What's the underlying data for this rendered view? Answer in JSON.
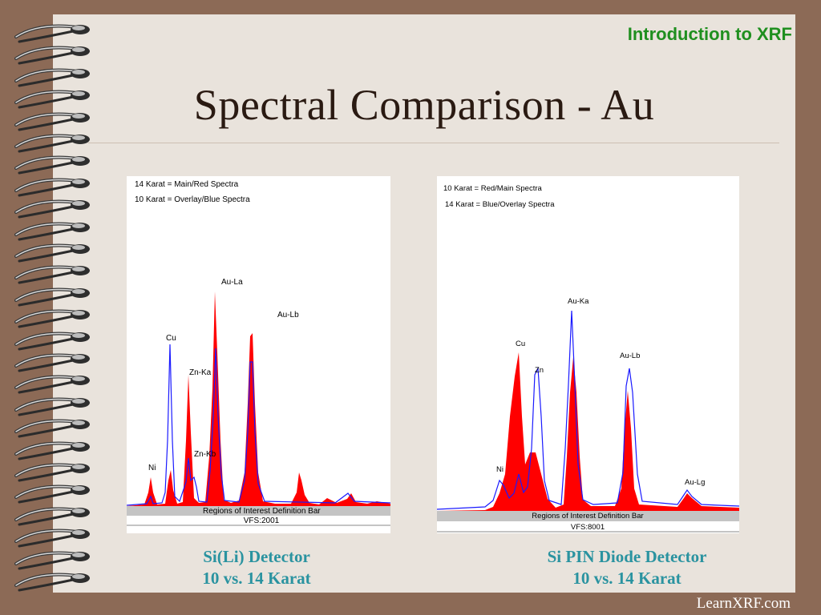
{
  "header": {
    "tag": "Introduction to XRF",
    "title": "Spectral Comparison - Au"
  },
  "footer": {
    "site": "LearnXRF.com"
  },
  "left_panel": {
    "legend_1": "14 Karat = Main/Red Spectra",
    "legend_2": "10 Karat = Overlay/Blue Spectra",
    "labels": {
      "ni": "Ni",
      "cu": "Cu",
      "zn_ka": "Zn-Ka",
      "zn_kb": "Zn-Kb",
      "au_la": "Au-La",
      "au_lb": "Au-Lb"
    },
    "roi_bar": "Regions of Interest Definition Bar",
    "vfs": "VFS:2001",
    "caption_1": "Si(Li) Detector",
    "caption_2": "10 vs. 14 Karat"
  },
  "right_panel": {
    "legend_1": "10 Karat = Red/Main Spectra",
    "legend_2": "14 Karat = Blue/Overlay Spectra",
    "labels": {
      "ni": "Ni",
      "cu": "Cu",
      "zn": "Zn",
      "au_ka": "Au-Ka",
      "au_lb": "Au-Lb",
      "au_lg": "Au-Lg"
    },
    "roi_bar": "Regions of Interest Definition Bar",
    "vfs": "VFS:8001",
    "caption_1": "Si PIN Diode Detector",
    "caption_2": "10 vs. 14 Karat"
  },
  "colors": {
    "main_spectrum": "#ff0000",
    "overlay_spectrum": "#1a1aff",
    "caption": "#2a93a0",
    "tag": "#1f8f1f"
  }
}
